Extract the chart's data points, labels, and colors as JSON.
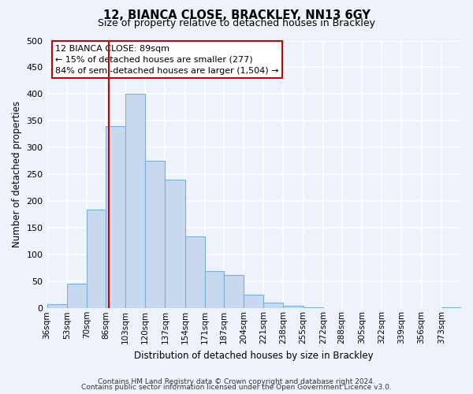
{
  "title": "12, BIANCA CLOSE, BRACKLEY, NN13 6GY",
  "subtitle": "Size of property relative to detached houses in Brackley",
  "xlabel": "Distribution of detached houses by size in Brackley",
  "ylabel": "Number of detached properties",
  "bar_color": "#c8d9ef",
  "bar_edge_color": "#7bafd4",
  "bins": [
    36,
    53,
    70,
    86,
    103,
    120,
    137,
    154,
    171,
    187,
    204,
    221,
    238,
    255,
    272,
    288,
    305,
    322,
    339,
    356,
    373,
    390
  ],
  "bin_labels": [
    "36sqm",
    "53sqm",
    "70sqm",
    "86sqm",
    "103sqm",
    "120sqm",
    "137sqm",
    "154sqm",
    "171sqm",
    "187sqm",
    "204sqm",
    "221sqm",
    "238sqm",
    "255sqm",
    "272sqm",
    "288sqm",
    "305sqm",
    "322sqm",
    "339sqm",
    "356sqm",
    "373sqm"
  ],
  "heights": [
    8,
    46,
    185,
    340,
    400,
    275,
    240,
    135,
    70,
    62,
    25,
    10,
    5,
    2,
    0,
    0,
    0,
    0,
    0,
    0,
    2
  ],
  "vline_x": 89,
  "vline_color": "#cc0000",
  "ylim": [
    0,
    500
  ],
  "yticks": [
    0,
    50,
    100,
    150,
    200,
    250,
    300,
    350,
    400,
    450,
    500
  ],
  "annotation_title": "12 BIANCA CLOSE: 89sqm",
  "annotation_line1": "← 15% of detached houses are smaller (277)",
  "annotation_line2": "84% of semi-detached houses are larger (1,504) →",
  "annotation_box_color": "#ffffff",
  "annotation_border_color": "#cc0000",
  "background_color": "#eef2fa",
  "grid_color": "#ffffff",
  "footer1": "Contains HM Land Registry data © Crown copyright and database right 2024.",
  "footer2": "Contains public sector information licensed under the Open Government Licence v3.0."
}
